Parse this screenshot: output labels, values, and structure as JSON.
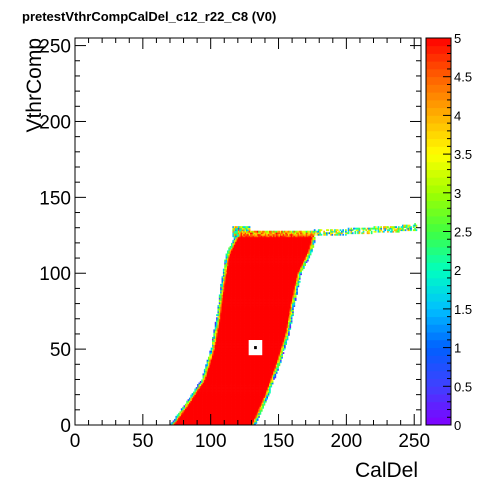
{
  "chart_data": {
    "type": "heatmap",
    "title": "pretestVthrCompCalDel_c12_r22_C8 (V0)",
    "xlabel": "CalDel",
    "ylabel": "VthrComp",
    "xlim": [
      0,
      255
    ],
    "ylim": [
      0,
      255
    ],
    "zlim": [
      0,
      5
    ],
    "x_ticks": [
      "0",
      "50",
      "100",
      "150",
      "200",
      "250"
    ],
    "y_ticks": [
      "0",
      "50",
      "100",
      "150",
      "200",
      "250"
    ],
    "z_ticks": [
      "0",
      "0.5",
      "1",
      "1.5",
      "2",
      "2.5",
      "3",
      "3.5",
      "4",
      "4.5",
      "5"
    ],
    "grid": false,
    "color_palette": "rainbow",
    "saturated_color": "#ff0000",
    "band": {
      "description_free_shape": "efficiency region (z=5)",
      "left_edge": [
        [
          73,
          0
        ],
        [
          85,
          15
        ],
        [
          96,
          30
        ],
        [
          103,
          50
        ],
        [
          107,
          70
        ],
        [
          110,
          90
        ],
        [
          114,
          112
        ],
        [
          121,
          125
        ]
      ],
      "right_edge": [
        [
          176,
          128
        ],
        [
          172,
          115
        ],
        [
          164,
          100
        ],
        [
          159,
          80
        ],
        [
          155,
          60
        ],
        [
          148,
          40
        ],
        [
          140,
          20
        ],
        [
          133,
          6
        ],
        [
          130,
          0
        ]
      ],
      "top_plateau_extension": [
        [
          176,
          128
        ],
        [
          200,
          129
        ],
        [
          240,
          131
        ],
        [
          250,
          132
        ]
      ],
      "hole_cell": [
        133,
        51
      ],
      "hole_value": 5
    }
  }
}
